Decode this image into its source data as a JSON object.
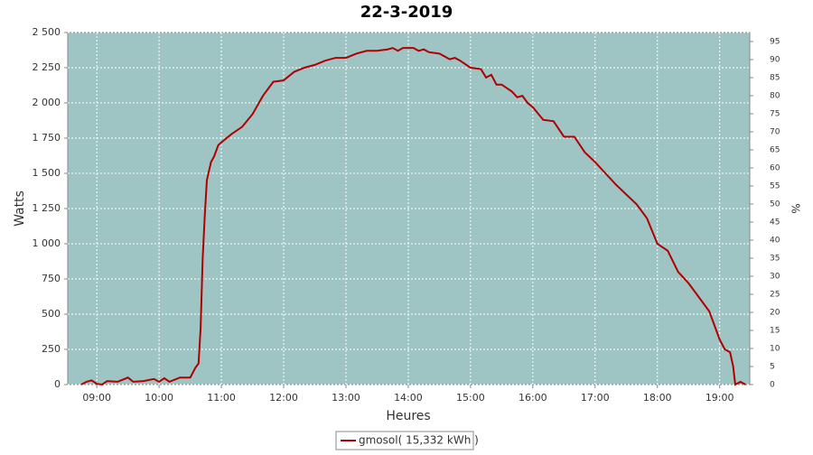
{
  "chart_data": {
    "type": "line",
    "title": "22-3-2019",
    "x_label": "Heures",
    "y_label": "Watts",
    "y2_label": "%",
    "x": [
      525,
      530,
      535,
      540,
      545,
      550,
      560,
      565,
      570,
      575,
      585,
      595,
      600,
      605,
      610,
      620,
      630,
      635,
      638,
      640,
      642,
      644,
      646,
      650,
      653,
      657,
      660,
      670,
      680,
      690,
      700,
      710,
      720,
      730,
      740,
      750,
      760,
      770,
      780,
      790,
      800,
      810,
      820,
      825,
      830,
      835,
      845,
      850,
      855,
      860,
      870,
      880,
      885,
      890,
      900,
      910,
      915,
      920,
      925,
      930,
      940,
      945,
      950,
      955,
      960,
      970,
      980,
      990,
      1000,
      1010,
      1020,
      1030,
      1040,
      1050,
      1060,
      1070,
      1080,
      1090,
      1100,
      1110,
      1120,
      1130,
      1140,
      1145,
      1150,
      1153,
      1155,
      1160,
      1165
    ],
    "series": [
      {
        "name": "gmosol( 15,332 kWh )",
        "color": "#b00000",
        "values": [
          0,
          20,
          30,
          5,
          0,
          25,
          20,
          35,
          50,
          20,
          25,
          40,
          20,
          45,
          20,
          50,
          50,
          120,
          150,
          400,
          900,
          1200,
          1450,
          1580,
          1620,
          1700,
          1720,
          1780,
          1830,
          1920,
          2050,
          2150,
          2160,
          2220,
          2250,
          2270,
          2300,
          2320,
          2320,
          2350,
          2370,
          2370,
          2380,
          2390,
          2370,
          2390,
          2390,
          2370,
          2380,
          2360,
          2350,
          2310,
          2320,
          2300,
          2250,
          2240,
          2180,
          2200,
          2130,
          2130,
          2080,
          2040,
          2050,
          2000,
          1970,
          1880,
          1870,
          1760,
          1760,
          1650,
          1580,
          1500,
          1420,
          1350,
          1280,
          1180,
          1000,
          950,
          800,
          720,
          620,
          520,
          320,
          250,
          230,
          130,
          0,
          20,
          0
        ]
      }
    ],
    "xlim": [
      512,
      1169
    ],
    "xticks": [
      {
        "value": 540,
        "label": "09:00"
      },
      {
        "value": 600,
        "label": "10:00"
      },
      {
        "value": 660,
        "label": "11:00"
      },
      {
        "value": 720,
        "label": "12:00"
      },
      {
        "value": 780,
        "label": "13:00"
      },
      {
        "value": 840,
        "label": "14:00"
      },
      {
        "value": 900,
        "label": "15:00"
      },
      {
        "value": 960,
        "label": "16:00"
      },
      {
        "value": 1020,
        "label": "17:00"
      },
      {
        "value": 1080,
        "label": "18:00"
      },
      {
        "value": 1140,
        "label": "19:00"
      }
    ],
    "ylim": [
      0,
      2500
    ],
    "yticks": [
      0,
      250,
      500,
      750,
      {
        "value": 1000,
        "label": "1 000"
      },
      {
        "value": 1250,
        "label": "1 250"
      },
      {
        "value": 1500,
        "label": "1 500"
      },
      {
        "value": 1750,
        "label": "1 750"
      },
      {
        "value": 2000,
        "label": "2 000"
      },
      {
        "value": 2250,
        "label": "2 250"
      },
      {
        "value": 2500,
        "label": "2 500"
      }
    ],
    "y2lim": [
      0,
      97.5
    ],
    "y2ticks": [
      0,
      5,
      10,
      15,
      20,
      25,
      30,
      35,
      40,
      45,
      50,
      55,
      60,
      65,
      70,
      75,
      80,
      85,
      90,
      95
    ],
    "grid": true,
    "background": "#9fc4c4",
    "legend": "bottom"
  }
}
